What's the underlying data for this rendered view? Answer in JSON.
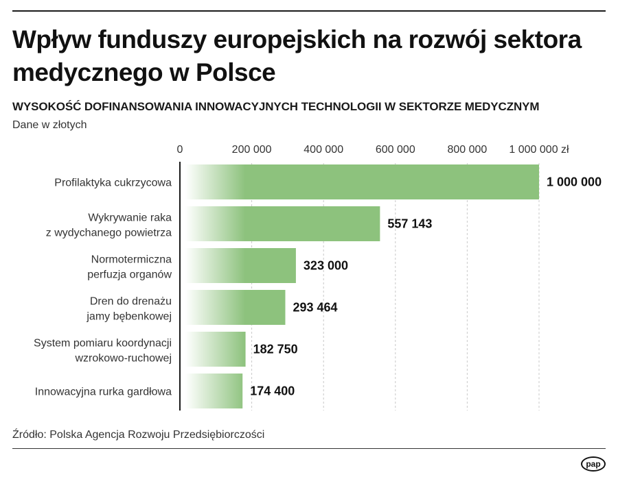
{
  "header": {
    "title": "Wpływ funduszy europejskich na rozwój sektora medycznego w Polsce",
    "subtitle": "WYSOKOŚĆ DOFINANSOWANIA INNOWACYJNYCH TECHNOLOGII W SEKTORZE MEDYCZNYM",
    "unit_note": "Dane w złotych"
  },
  "footer": {
    "source": "Źródło: Polska Agencja Rozwoju Przedsiębiorczości",
    "logo": "pap"
  },
  "chart_data": {
    "type": "bar",
    "orientation": "horizontal",
    "categories": [
      [
        "Profilaktyka cukrzycowa"
      ],
      [
        "Wykrywanie raka",
        "z wydychanego powietrza"
      ],
      [
        "Normotermiczna",
        "perfuzja organów"
      ],
      [
        "Dren do drenażu",
        "jamy bębenkowej"
      ],
      [
        "System pomiaru koordynacji",
        "wzrokowo-ruchowej"
      ],
      [
        "Innowacyjna rurka gardłowa"
      ]
    ],
    "values": [
      1000000,
      557143,
      323000,
      293464,
      182750,
      174400
    ],
    "value_labels": [
      "1 000 000",
      "557 143",
      "323 000",
      "293 464",
      "182 750",
      "174 400"
    ],
    "x_ticks": [
      0,
      200000,
      400000,
      600000,
      800000,
      1000000
    ],
    "x_tick_labels": [
      "0",
      "200 000",
      "400 000",
      "600 000",
      "800 000",
      "1 000 000 zł"
    ],
    "xlim": [
      0,
      1000000
    ],
    "grid": "vertical dashed",
    "colors": {
      "bar": "#8dc27d",
      "bar_fade": "#ffffff",
      "axis": "#1a1a1a",
      "grid": "#c8c8c8"
    }
  }
}
